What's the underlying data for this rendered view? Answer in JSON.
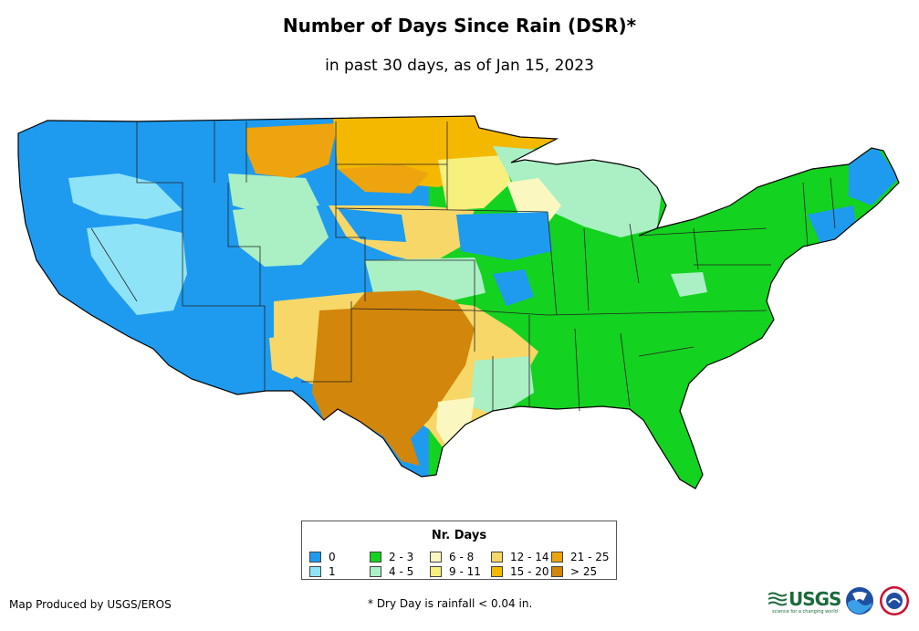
{
  "header": {
    "title": "Number of Days Since Rain (DSR)*",
    "subtitle": "in past 30 days, as of Jan 15, 2023"
  },
  "legend": {
    "title": "Nr. Days",
    "items": [
      {
        "label": "0",
        "color": "#1e9bef"
      },
      {
        "label": "1",
        "color": "#8fe3f7"
      },
      {
        "label": "2 - 3",
        "color": "#14d220"
      },
      {
        "label": "4 - 5",
        "color": "#aaf0c4"
      },
      {
        "label": "6 - 8",
        "color": "#fbf7c0"
      },
      {
        "label": "9 - 11",
        "color": "#f7ef7e"
      },
      {
        "label": "12 - 14",
        "color": "#f6d768"
      },
      {
        "label": "15 - 20",
        "color": "#f5b800"
      },
      {
        "label": "21 - 25",
        "color": "#eea40e"
      },
      {
        "label": "> 25",
        "color": "#d2860b"
      }
    ]
  },
  "footer": {
    "credit": "Map Produced by USGS/EROS",
    "note": "* Dry Day is rainfall < 0.04 in."
  },
  "logos": {
    "usgs": "USGS",
    "usgs_tagline": "science for a changing world",
    "noaa": "noaa",
    "nws": "NWS"
  },
  "map_regions": [
    {
      "name": "west-coast-wet",
      "category": "0"
    },
    {
      "name": "great-basin-patchy",
      "category": "1"
    },
    {
      "name": "montana-dry",
      "category": "21 - 25"
    },
    {
      "name": "dakotas-dry",
      "category": "15 - 20"
    },
    {
      "name": "texas-oklahoma-driest",
      "category": "> 25"
    },
    {
      "name": "southern-plains",
      "category": "12 - 14"
    },
    {
      "name": "great-lakes",
      "category": "4 - 5"
    },
    {
      "name": "iowa-wet",
      "category": "0"
    },
    {
      "name": "east-recent-rain",
      "category": "2 - 3"
    },
    {
      "name": "maine-wet",
      "category": "0"
    }
  ]
}
